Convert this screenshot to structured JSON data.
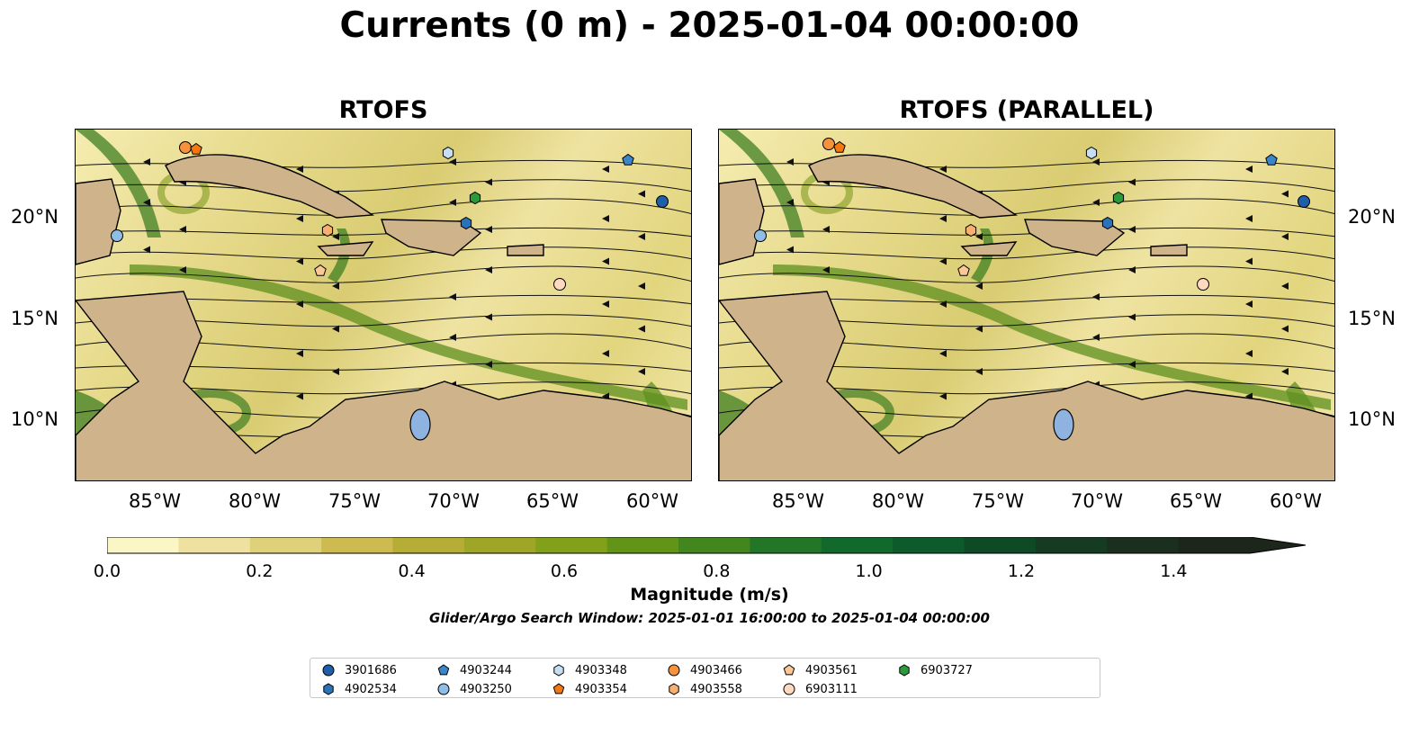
{
  "title": "Currents (0 m) - 2025-01-04 00:00:00",
  "panels": [
    {
      "title": "RTOFS"
    },
    {
      "title": "RTOFS (PARALLEL)"
    }
  ],
  "axes": {
    "x_ticks": [
      "85°W",
      "80°W",
      "75°W",
      "70°W",
      "65°W",
      "60°W"
    ],
    "y_ticks": [
      "20°N",
      "15°N",
      "10°N"
    ]
  },
  "colorbar": {
    "label": "Magnitude (m/s)",
    "ticks": [
      "0.0",
      "0.2",
      "0.4",
      "0.6",
      "0.8",
      "1.0",
      "1.2",
      "1.4"
    ],
    "colors": [
      "#fbf6c6",
      "#efe2a0",
      "#dfd07a",
      "#cdbb52",
      "#b5ad35",
      "#9ea527",
      "#82a01a",
      "#629418",
      "#43861e",
      "#237628",
      "#12692c",
      "#0d5a2a",
      "#0f4a26",
      "#153c22",
      "#1a2f1d",
      "#1c261a"
    ]
  },
  "search_window": "Glider/Argo Search Window: 2025-01-01 16:00:00 to 2025-01-04 00:00:00",
  "legend": [
    {
      "id": "3901686",
      "shape": "circle",
      "color": "#1f5ea8"
    },
    {
      "id": "4902534",
      "shape": "hexagon",
      "color": "#2b73b8"
    },
    {
      "id": "4903244",
      "shape": "pentagon",
      "color": "#3a86c8"
    },
    {
      "id": "4903250",
      "shape": "circle",
      "color": "#8ebde6"
    },
    {
      "id": "4903348",
      "shape": "hexagon",
      "color": "#c6def2"
    },
    {
      "id": "4903354",
      "shape": "pentagon",
      "color": "#f5780f"
    },
    {
      "id": "4903466",
      "shape": "circle",
      "color": "#f6923b"
    },
    {
      "id": "4903558",
      "shape": "hexagon",
      "color": "#f8b070"
    },
    {
      "id": "4903561",
      "shape": "pentagon",
      "color": "#fbc795"
    },
    {
      "id": "6903111",
      "shape": "circle",
      "color": "#fdd9c0"
    },
    {
      "id": "6903727",
      "shape": "hexagon",
      "color": "#2a9a3a"
    }
  ],
  "map_colors": {
    "land": "#cfb38b",
    "lake": "#8fb3e0",
    "ocean_low": "#f3e8a8"
  }
}
